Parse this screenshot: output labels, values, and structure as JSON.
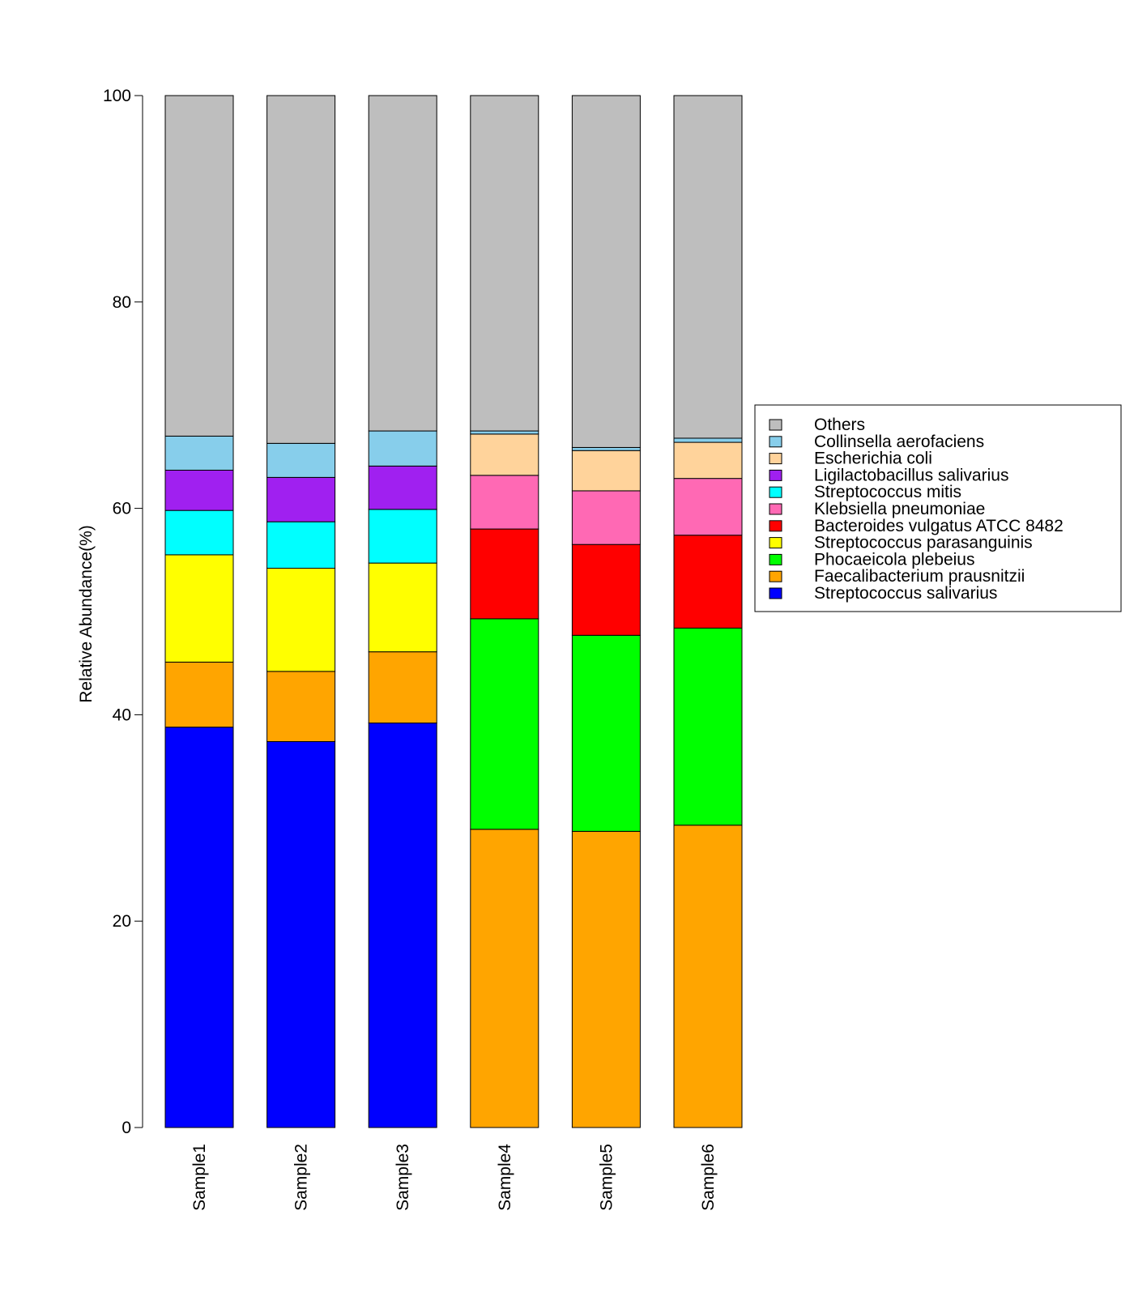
{
  "chart_data": {
    "type": "bar",
    "stacked": true,
    "title": "",
    "xlabel": "",
    "ylabel": "Relative Abundance(%)",
    "ylim": [
      0,
      100
    ],
    "yticks": [
      0,
      20,
      40,
      60,
      80,
      100
    ],
    "grid": false,
    "legend_position": "right",
    "categories": [
      "Sample1",
      "Sample2",
      "Sample3",
      "Sample4",
      "Sample5",
      "Sample6"
    ],
    "series": [
      {
        "name": "Streptococcus salivarius",
        "color": "#0000FF",
        "values": [
          38.8,
          37.4,
          39.2,
          0,
          0,
          0
        ]
      },
      {
        "name": "Faecalibacterium prausnitzii",
        "color": "#FFA500",
        "values": [
          6.3,
          6.8,
          6.9,
          28.9,
          28.7,
          29.3
        ]
      },
      {
        "name": "Phocaeicola plebeius",
        "color": "#00FF00",
        "values": [
          0,
          0,
          0,
          20.4,
          19.0,
          19.1
        ]
      },
      {
        "name": "Bacteroides vulgatus ATCC 8482",
        "color": "#FF0000",
        "values": [
          0,
          0,
          0,
          8.7,
          8.8,
          9.0
        ]
      },
      {
        "name": "Streptococcus parasanguinis",
        "color": "#FFFF00",
        "values": [
          10.4,
          10.0,
          8.6,
          0,
          0,
          0
        ]
      },
      {
        "name": "Streptococcus mitis",
        "color": "#00FFFF",
        "values": [
          4.3,
          4.5,
          5.2,
          0,
          0,
          0
        ]
      },
      {
        "name": "Klebsiella pneumoniae",
        "color": "#FF69B4",
        "values": [
          0,
          0,
          0,
          5.2,
          5.2,
          5.5
        ]
      },
      {
        "name": "Ligilactobacillus salivarius",
        "color": "#A020F0",
        "values": [
          3.9,
          4.3,
          4.2,
          0,
          0,
          0
        ]
      },
      {
        "name": "Escherichia coli",
        "color": "#FFD39B",
        "values": [
          0,
          0,
          0,
          4.0,
          3.9,
          3.5
        ]
      },
      {
        "name": "Collinsella aerofaciens",
        "color": "#87CEEB",
        "values": [
          3.3,
          3.3,
          3.4,
          0.3,
          0.3,
          0.4
        ]
      },
      {
        "name": "Others",
        "color": "#BEBEBE",
        "values": [
          33.0,
          33.7,
          32.5,
          32.5,
          34.1,
          33.2
        ]
      }
    ],
    "legend_order": [
      "Others",
      "Collinsella aerofaciens",
      "Escherichia coli",
      "Ligilactobacillus salivarius",
      "Streptococcus mitis",
      "Klebsiella pneumoniae",
      "Bacteroides vulgatus ATCC 8482",
      "Streptococcus parasanguinis",
      "Phocaeicola plebeius",
      "Faecalibacterium prausnitzii",
      "Streptococcus salivarius"
    ]
  }
}
